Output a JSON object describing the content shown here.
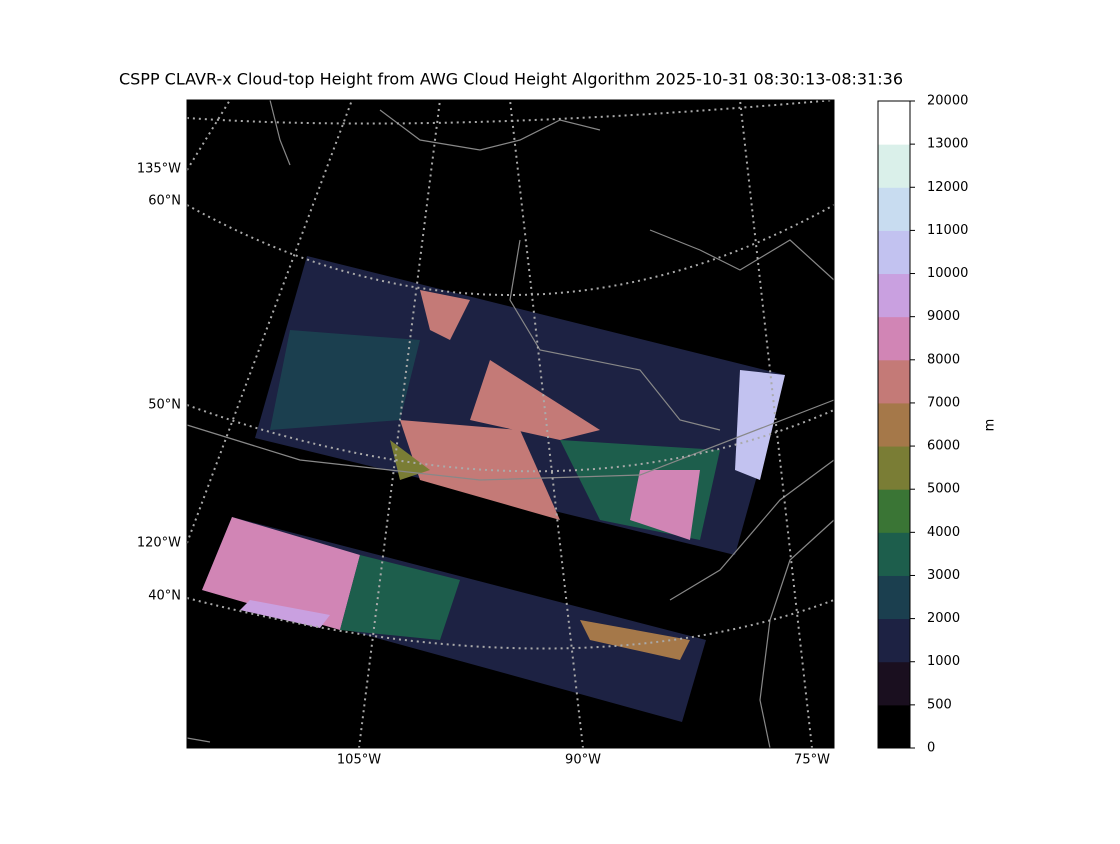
{
  "title": "CSPP CLAVR-x Cloud-top Height from AWG Cloud Height Algorithm 2025-10-31 08:30:13-08:31:36",
  "map": {
    "lat_labels": [
      "60°N",
      "50°N",
      "40°N"
    ],
    "lon_labels_left": [
      "135°W",
      "120°W"
    ],
    "lon_labels_bottom": [
      "105°W",
      "90°W",
      "75°W"
    ]
  },
  "colorbar": {
    "label": "m",
    "ticks": [
      0,
      500,
      1000,
      2000,
      3000,
      4000,
      5000,
      6000,
      7000,
      8000,
      9000,
      10000,
      11000,
      12000,
      13000,
      20000
    ],
    "colors": [
      "#000000",
      "#1a0f1f",
      "#1d2243",
      "#1b3f4f",
      "#1d5e4c",
      "#3a7535",
      "#7a7d35",
      "#a57849",
      "#c47a77",
      "#d185b5",
      "#c9a0e0",
      "#c2c2f0",
      "#c8dcf0",
      "#daf0ea",
      "#ffffff"
    ]
  }
}
